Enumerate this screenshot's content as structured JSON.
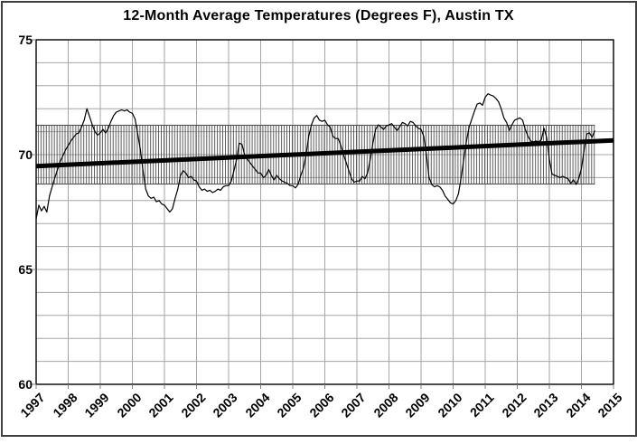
{
  "title": "12-Month Average Temperatures (Degrees F), Austin TX",
  "colors": {
    "background": "#ffffff",
    "frame_border": "#3f3f3f",
    "plot_border": "#000000",
    "gridline": "#a6a6a6",
    "tick": "#7f7f7f",
    "series_line": "#000000",
    "trend_line": "#000000",
    "band_hatch": "#4a4a4a"
  },
  "chart_data": {
    "type": "line",
    "title": "12-Month Average Temperatures (Degrees F), Austin TX",
    "xlabel": "",
    "ylabel": "",
    "xlim": [
      1997,
      2015
    ],
    "ylim": [
      60,
      75
    ],
    "x_ticks": [
      1997,
      1998,
      1999,
      2000,
      2001,
      2002,
      2003,
      2004,
      2005,
      2006,
      2007,
      2008,
      2009,
      2010,
      2011,
      2012,
      2013,
      2014,
      2015
    ],
    "y_ticks": [
      60,
      65,
      70,
      75
    ],
    "y_minor_step": 1,
    "grid": true,
    "legend": "none",
    "series": [
      {
        "name": "12-month average temperature",
        "x_start": 1997.0,
        "x_step": 0.083333,
        "values": [
          67.2,
          67.8,
          67.55,
          67.75,
          67.5,
          68.2,
          68.6,
          69.0,
          69.35,
          69.7,
          69.95,
          70.2,
          70.4,
          70.6,
          70.75,
          70.9,
          70.95,
          71.2,
          71.5,
          72.0,
          71.65,
          71.3,
          71.0,
          70.85,
          70.95,
          71.1,
          70.95,
          71.15,
          71.45,
          71.7,
          71.85,
          71.9,
          71.95,
          71.9,
          71.95,
          71.85,
          71.8,
          71.55,
          70.9,
          70.2,
          69.3,
          68.5,
          68.2,
          68.1,
          68.15,
          67.95,
          68.0,
          67.85,
          67.8,
          67.65,
          67.5,
          67.65,
          68.1,
          68.5,
          69.1,
          69.3,
          69.2,
          69.0,
          69.05,
          68.9,
          68.85,
          68.6,
          68.45,
          68.5,
          68.4,
          68.45,
          68.35,
          68.4,
          68.5,
          68.45,
          68.6,
          68.65,
          68.65,
          68.85,
          69.3,
          69.8,
          70.5,
          70.45,
          70.0,
          69.8,
          69.65,
          69.5,
          69.35,
          69.2,
          69.2,
          69.0,
          69.1,
          69.35,
          69.1,
          68.9,
          69.1,
          68.95,
          68.85,
          68.8,
          68.75,
          68.65,
          68.65,
          68.55,
          68.7,
          69.1,
          69.4,
          70.0,
          70.8,
          71.3,
          71.6,
          71.7,
          71.5,
          71.45,
          71.5,
          71.3,
          71.2,
          70.8,
          70.7,
          70.7,
          70.4,
          70.0,
          69.65,
          69.3,
          68.95,
          68.8,
          68.85,
          68.85,
          69.05,
          68.95,
          69.2,
          69.8,
          70.5,
          71.1,
          71.3,
          71.2,
          71.1,
          71.25,
          71.3,
          71.35,
          71.2,
          71.05,
          71.2,
          71.4,
          71.35,
          71.25,
          71.45,
          71.4,
          71.25,
          71.15,
          71.1,
          70.8,
          70.0,
          69.0,
          68.7,
          68.6,
          68.65,
          68.6,
          68.45,
          68.2,
          68.05,
          67.9,
          67.85,
          68.0,
          68.3,
          69.0,
          69.8,
          70.6,
          71.2,
          71.55,
          71.9,
          72.2,
          72.25,
          72.15,
          72.5,
          72.65,
          72.6,
          72.55,
          72.45,
          72.3,
          72.0,
          71.6,
          71.4,
          71.05,
          71.3,
          71.5,
          71.55,
          71.6,
          71.5,
          71.1,
          70.8,
          70.6,
          70.55,
          70.6,
          70.55,
          70.65,
          71.15,
          70.75,
          69.8,
          69.15,
          69.1,
          69.05,
          69.0,
          69.05,
          69.0,
          68.95,
          68.75,
          68.9,
          68.7,
          68.95,
          69.4,
          70.2,
          70.9,
          70.95,
          70.75,
          71.05
        ]
      }
    ],
    "trend_line": {
      "name": "linear trend",
      "x1": 1997.0,
      "y1": 69.5,
      "x2": 2015.0,
      "y2": 70.62,
      "width": 5
    },
    "band": {
      "name": "monthly high-low hatch band",
      "low": 68.72,
      "high": 71.28,
      "x1": 1997.0,
      "x2": 2014.42,
      "style": "vertical-hatch"
    }
  }
}
